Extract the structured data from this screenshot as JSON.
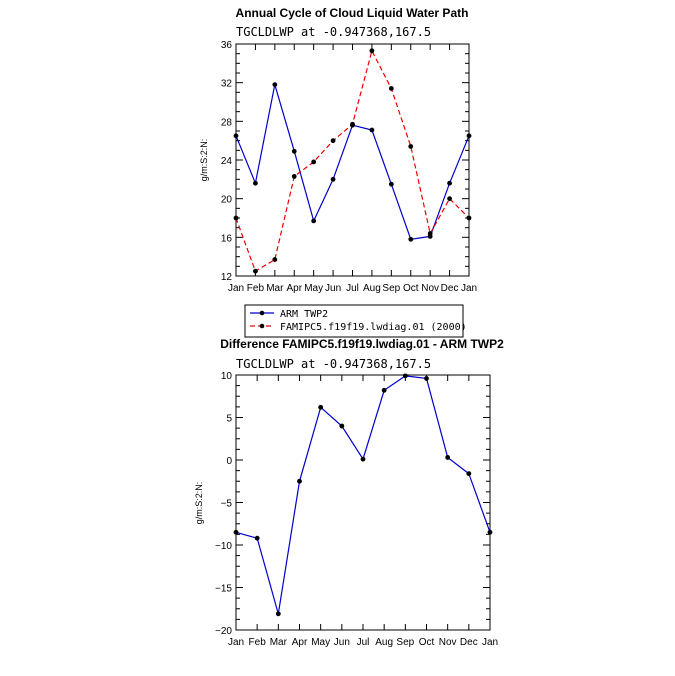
{
  "chart_data": [
    {
      "type": "line",
      "title": "Annual Cycle of Cloud Liquid Water Path",
      "subtitle": "TGCLDLWP at -0.947368,167.5",
      "xlabel": "",
      "ylabel": "g/m:S:2:N:",
      "categories": [
        "Jan",
        "Feb",
        "Mar",
        "Apr",
        "May",
        "Jun",
        "Jul",
        "Aug",
        "Sep",
        "Oct",
        "Nov",
        "Dec",
        "Jan"
      ],
      "ylim": [
        12,
        36
      ],
      "yticks": [
        12,
        16,
        20,
        24,
        28,
        32,
        36
      ],
      "series": [
        {
          "name": "ARM TWP2",
          "color": "#0000cc",
          "dash": "solid",
          "values": [
            26.5,
            21.6,
            31.8,
            24.9,
            17.7,
            22.0,
            27.6,
            27.1,
            21.5,
            15.8,
            16.1,
            21.6,
            26.5
          ]
        },
        {
          "name": "FAMIPC5.f19f19.lwdiag.01 (2000)",
          "color": "#ee0000",
          "dash": "dashed",
          "values": [
            18.0,
            12.5,
            13.7,
            22.3,
            23.8,
            26.0,
            27.7,
            35.3,
            31.4,
            25.4,
            16.4,
            20.0,
            18.0
          ]
        }
      ],
      "legend": "below"
    },
    {
      "type": "line",
      "title": "Difference FAMIPC5.f19f19.lwdiag.01 - ARM TWP2",
      "subtitle": "TGCLDLWP at -0.947368,167.5",
      "xlabel": "",
      "ylabel": "g/m:S:2:N:",
      "categories": [
        "Jan",
        "Feb",
        "Mar",
        "Apr",
        "May",
        "Jun",
        "Jul",
        "Aug",
        "Sep",
        "Oct",
        "Nov",
        "Dec",
        "Jan"
      ],
      "ylim": [
        -20,
        10
      ],
      "yticks": [
        -20,
        -15,
        -10,
        -5,
        0,
        5,
        10
      ],
      "series": [
        {
          "name": "Difference",
          "color": "#0000cc",
          "dash": "solid",
          "values": [
            -8.5,
            -9.2,
            -18.1,
            -2.5,
            6.2,
            4.0,
            0.1,
            8.2,
            9.9,
            9.6,
            0.3,
            -1.6,
            -8.5
          ]
        }
      ]
    }
  ]
}
